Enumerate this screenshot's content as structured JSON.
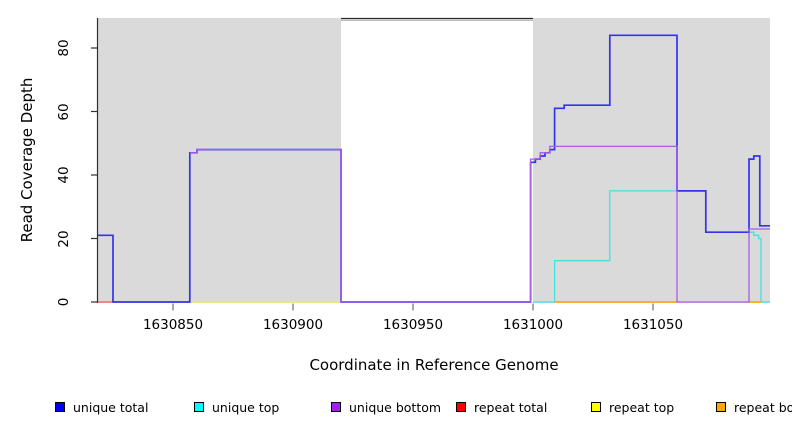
{
  "chart_data": {
    "type": "line",
    "title": "",
    "xlabel": "Coordinate in Reference Genome",
    "ylabel": "Read Coverage Depth",
    "xlim": [
      1630818.75,
      1631098.75
    ],
    "ylim": [
      0,
      89
    ],
    "x_ticks": [
      1630850,
      1630900,
      1630950,
      1631000,
      1631050
    ],
    "y_ticks": [
      0,
      20,
      40,
      60,
      80
    ],
    "grid": false,
    "legend_position": "bottom",
    "plot_bg": "#FFFFFF",
    "shaded_region_color": "#DADADA",
    "shaded_regions": [
      {
        "x0": 1630818.75,
        "x1": 1630920,
        "color": "#DADADA"
      },
      {
        "x0": 1631000,
        "x1": 1631098.75,
        "color": "#DADADA"
      }
    ],
    "series": [
      {
        "name": "repeat total",
        "color": "#FF5555",
        "width": 1.3,
        "opacity": 1,
        "runs": [
          [
            1630818.75,
            1630826,
            0
          ]
        ]
      },
      {
        "name": "unique top",
        "color": "#45E0E0",
        "width": 1.3,
        "opacity": 1,
        "runs": [
          [
            1631000,
            1631009,
            0
          ],
          [
            1631009,
            1631032,
            13
          ],
          [
            1631032,
            1631072,
            35
          ],
          [
            1631072,
            1631092,
            22
          ],
          [
            1631092,
            1631094,
            21
          ],
          [
            1631094,
            1631095,
            20
          ],
          [
            1631095,
            1631098.75,
            0
          ]
        ]
      },
      {
        "name": "repeat top",
        "color": "#FFFF00",
        "width": 1.3,
        "opacity": 0.55,
        "runs": [
          [
            1630857,
            1630920,
            0
          ]
        ]
      },
      {
        "name": "repeat bottom",
        "color": "#FFA500",
        "width": 1.5,
        "opacity": 1,
        "runs": [
          [
            1631009,
            1631060,
            0
          ],
          [
            1631089,
            1631095,
            0
          ]
        ]
      },
      {
        "name": "unique total",
        "color": "#3333EE",
        "width": 1.7,
        "opacity": 1,
        "runs": [
          [
            1630818.75,
            1630825,
            21
          ],
          [
            1630825,
            1630857,
            0
          ],
          [
            1630857,
            1630860,
            47
          ],
          [
            1630860,
            1630920,
            48
          ],
          [
            1630920,
            1630999,
            0
          ],
          [
            1630999,
            1631001,
            44
          ],
          [
            1631001,
            1631003,
            45
          ],
          [
            1631003,
            1631005,
            46
          ],
          [
            1631005,
            1631007,
            47
          ],
          [
            1631007,
            1631009,
            48
          ],
          [
            1631009,
            1631013,
            61
          ],
          [
            1631013,
            1631032,
            62
          ],
          [
            1631032,
            1631060,
            84
          ],
          [
            1631060,
            1631072,
            35
          ],
          [
            1631072,
            1631090,
            22
          ],
          [
            1631090,
            1631092,
            45
          ],
          [
            1631092,
            1631094.5,
            46
          ],
          [
            1631094.5,
            1631098.75,
            24
          ]
        ]
      },
      {
        "name": "unique bottom",
        "color": "#A85CE8",
        "width": 1.3,
        "opacity": 1,
        "runs": [
          [
            1630857,
            1630860,
            47
          ],
          [
            1630860,
            1630920,
            48
          ],
          [
            1630920,
            1630999,
            0
          ],
          [
            1630999,
            1631003,
            45
          ],
          [
            1631003,
            1631007,
            47
          ],
          [
            1631007,
            1631060,
            49
          ],
          [
            1631060,
            1631090,
            0
          ],
          [
            1631090,
            1631098.75,
            23
          ]
        ]
      }
    ]
  },
  "legend": {
    "items": [
      {
        "label": "unique total",
        "color": "#0000EE"
      },
      {
        "label": "unique top",
        "color": "#00FFFF"
      },
      {
        "label": "unique bottom",
        "color": "#A020F0"
      },
      {
        "label": "repeat total",
        "color": "#FF0000"
      },
      {
        "label": "repeat top",
        "color": "#FFFF00"
      },
      {
        "label": "repeat bottom",
        "color": "#FFA500"
      }
    ]
  }
}
